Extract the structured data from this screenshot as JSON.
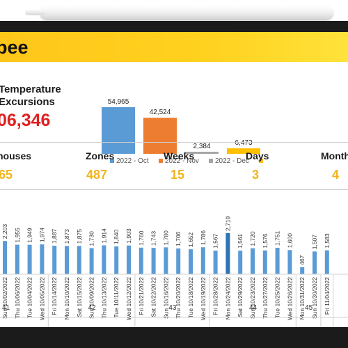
{
  "header": {
    "title": "pee"
  },
  "kpi": {
    "label_line1": "Temperature",
    "label_line2": "Excursions",
    "value": "06,346"
  },
  "mini_chart": {
    "type": "bar",
    "series": [
      {
        "name": "2022 - Oct",
        "value": 54965,
        "label": "54,965",
        "color": "#5b9bd5"
      },
      {
        "name": "2022 - Nov",
        "value": 42524,
        "label": "42,524",
        "color": "#ed7d31"
      },
      {
        "name": "2022 - Dec",
        "value": 2384,
        "label": "2,384",
        "color": "#a5a5a5"
      },
      {
        "name": "",
        "value": 6473,
        "label": "6,473",
        "color": "#ffc000"
      }
    ]
  },
  "metrics": [
    {
      "label": "houses",
      "value": "65"
    },
    {
      "label": "Zones",
      "value": "487"
    },
    {
      "label": "Weeks",
      "value": "15"
    },
    {
      "label": "Days",
      "value": "3"
    },
    {
      "label": "Months",
      "value": "4"
    }
  ],
  "chart_data": {
    "type": "bar",
    "bar_color": "#5b9bd5",
    "highlight_color": "#2e75b6",
    "categories": [
      "Sun 10/02/2022",
      "Thu 10/06/2022",
      "Tue 10/04/2022",
      "Wed 10/05/2022",
      "Fri 10/14/2022",
      "Mon 10/10/2022",
      "Sat 10/15/2022",
      "Sun 10/09/2022",
      "Thu 10/13/2022",
      "Tue 10/11/2022",
      "Wed 10/12/2022",
      "Fri 10/21/2022",
      "Sat 10/22/2022",
      "Sun 10/16/2022",
      "Thu 10/20/2022",
      "Tue 10/18/2022",
      "Wed 10/19/2022",
      "Fri 10/28/2022",
      "Mon 10/24/2022",
      "Sat 10/29/2022",
      "Sun 10/23/2022",
      "Thu 10/27/2022",
      "Tue 10/25/2022",
      "Wed 10/26/2022",
      "Mon 10/31/2022",
      "Sun 10/30/2022",
      "Fri 11/04/2022"
    ],
    "values": [
      2203,
      1955,
      1949,
      1974,
      1887,
      1873,
      1875,
      1730,
      1914,
      1840,
      1903,
      1760,
      1743,
      1780,
      1706,
      1652,
      1786,
      1567,
      2719,
      1561,
      1720,
      1576,
      1751,
      1600,
      467,
      1507,
      1583
    ],
    "labels": [
      "2,203",
      "1,955",
      "1,949",
      "1,974",
      "1,887",
      "1,873",
      "1,875",
      "1,730",
      "1,914",
      "1,840",
      "1,903",
      "1,760",
      "1,743",
      "1,780",
      "1,706",
      "1,652",
      "1,786",
      "1,567",
      "2,719",
      "1,561",
      "1,720",
      "1,576",
      "1,751",
      "1,600",
      "467",
      "1,507",
      "1,583"
    ],
    "highlight_index": 18,
    "groups": [
      {
        "label": "41",
        "count": 4
      },
      {
        "label": "42",
        "count": 7
      },
      {
        "label": "43",
        "count": 6
      },
      {
        "label": "44",
        "count": 7
      },
      {
        "label": "45",
        "count": 2
      },
      {
        "label": "",
        "count": 1
      }
    ]
  }
}
